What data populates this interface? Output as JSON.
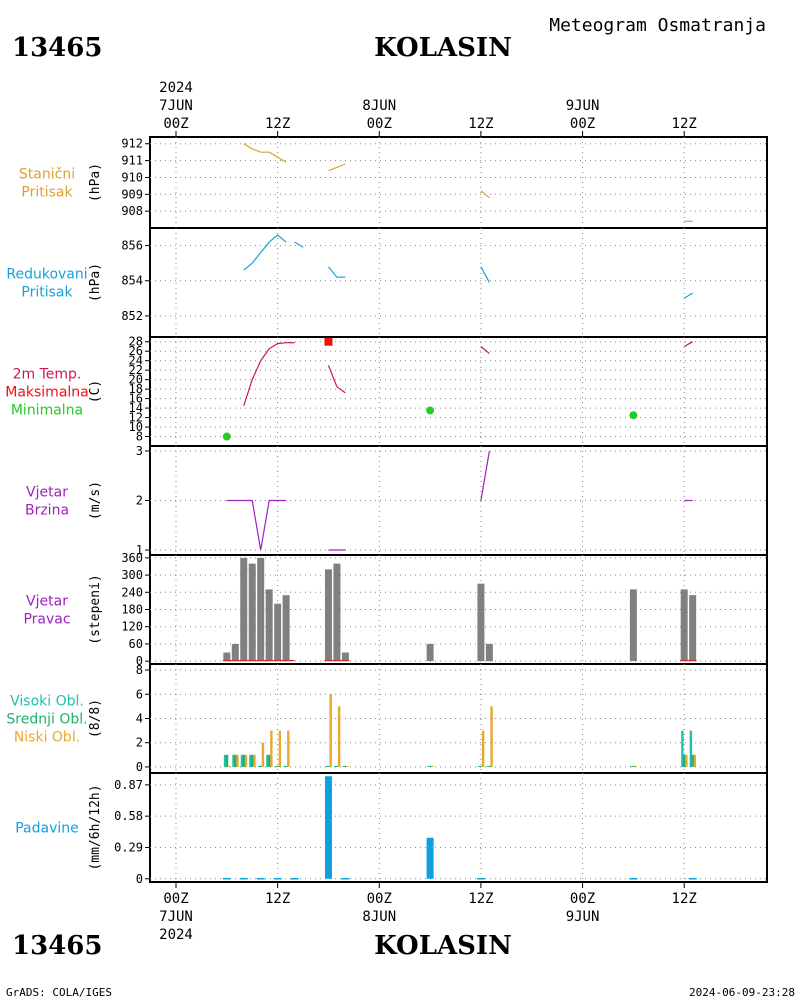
{
  "header": {
    "station_id": "13465",
    "station_name": "KOLASIN",
    "product": "Meteogram Osmatranja"
  },
  "time_axis": {
    "top_year": "2024",
    "date_labels": [
      "7JUN",
      "8JUN",
      "9JUN"
    ],
    "hour_labels": [
      "00Z",
      "12Z",
      "00Z",
      "12Z",
      "00Z",
      "12Z"
    ],
    "bottom_year": "2024"
  },
  "footer": {
    "credit": "GrADS: COLA/IGES",
    "timestamp": "2024-06-09-23:28"
  },
  "colors": {
    "pressure": "#e0a030",
    "reduced_pressure": "#1aa0d8",
    "temp": "#c8185a",
    "max_temp": "#ee1111",
    "min_temp": "#22cc22",
    "wind": "#a020c0",
    "dir_bar": "#808080",
    "dir_line": "#c83030",
    "high_cloud": "#20c0b0",
    "mid_cloud": "#20b070",
    "low_cloud": "#e8a830",
    "precip": "#10a0e0"
  },
  "chart_data": [
    {
      "type": "line",
      "panel": "station_pressure",
      "label_lines": [
        "Stanični",
        "Pritisak"
      ],
      "ylabel": "(hPa)",
      "ylim": [
        907,
        912.4
      ],
      "yticks": [
        912,
        911,
        910,
        909,
        908
      ],
      "series": [
        {
          "x": [
            8,
            9,
            10,
            11,
            12,
            13
          ],
          "values": [
            912.0,
            911.7,
            911.5,
            911.5,
            911.2,
            910.9
          ]
        },
        {
          "x": [
            18,
            20
          ],
          "values": [
            910.4,
            910.8
          ]
        },
        {
          "x": [
            36,
            37
          ],
          "values": [
            909.2,
            908.8
          ]
        },
        {
          "x": [
            60,
            61
          ],
          "values": [
            907.4,
            907.4
          ]
        }
      ]
    },
    {
      "type": "line",
      "panel": "reduced_pressure",
      "label_lines": [
        "Redukovani",
        "Pritisak"
      ],
      "ylabel": "(hPa)",
      "ylim": [
        850.8,
        857
      ],
      "yticks": [
        856,
        854,
        852
      ],
      "series": [
        {
          "x": [
            8,
            9,
            10,
            11,
            12,
            13
          ],
          "values": [
            854.6,
            855.0,
            855.6,
            856.2,
            856.6,
            856.2
          ]
        },
        {
          "x": [
            14,
            15
          ],
          "values": [
            856.2,
            855.9
          ]
        },
        {
          "x": [
            18,
            19,
            20
          ],
          "values": [
            854.8,
            854.2,
            854.2
          ]
        },
        {
          "x": [
            36,
            37
          ],
          "values": [
            854.8,
            853.9
          ]
        },
        {
          "x": [
            60,
            61
          ],
          "values": [
            853.0,
            853.3
          ]
        }
      ]
    },
    {
      "type": "line",
      "panel": "temperature",
      "label_lines": [
        "2m Temp.",
        "Maksimalna",
        "Minimalna"
      ],
      "ylabel": "(C)",
      "ylim": [
        6,
        29
      ],
      "yticks": [
        28,
        26,
        24,
        22,
        20,
        18,
        16,
        14,
        12,
        10,
        8
      ],
      "series": [
        {
          "name": "2m Temp.",
          "x": [
            8,
            9,
            10,
            11,
            12,
            13
          ],
          "values": [
            14.5,
            20.0,
            24.0,
            26.5,
            27.6,
            27.8
          ]
        },
        {
          "x": [
            13,
            14
          ],
          "values": [
            27.8,
            27.8
          ]
        },
        {
          "x": [
            18,
            19,
            20
          ],
          "values": [
            23.0,
            18.5,
            17.2
          ]
        },
        {
          "x": [
            36,
            37
          ],
          "values": [
            27.0,
            25.5
          ]
        },
        {
          "x": [
            60,
            61
          ],
          "values": [
            27.0,
            28.0
          ]
        }
      ],
      "max_points": [
        {
          "x": 18,
          "value": 28.0
        }
      ],
      "min_points": [
        {
          "x": 6,
          "value": 8.0
        },
        {
          "x": 30,
          "value": 13.5
        },
        {
          "x": 54,
          "value": 12.5
        }
      ]
    },
    {
      "type": "line",
      "panel": "wind_speed",
      "label_lines": [
        "Vjetar",
        "Brzina"
      ],
      "ylabel": "(m/s)",
      "ylim": [
        0.9,
        3.1
      ],
      "yticks": [
        3,
        2,
        1
      ],
      "series": [
        {
          "x": [
            6,
            7,
            8,
            9,
            10,
            11,
            12,
            13
          ],
          "values": [
            2,
            2,
            2,
            2,
            1,
            2,
            2,
            2
          ]
        },
        {
          "x": [
            18,
            20
          ],
          "values": [
            1,
            1
          ]
        },
        {
          "x": [
            36,
            37
          ],
          "values": [
            2,
            3
          ]
        },
        {
          "x": [
            60,
            61
          ],
          "values": [
            2,
            2
          ]
        }
      ]
    },
    {
      "type": "bar",
      "panel": "wind_direction",
      "label_lines": [
        "Vjetar",
        "Pravac"
      ],
      "ylabel": "(stepeni)",
      "ylim": [
        -10,
        370
      ],
      "yticks": [
        360,
        300,
        240,
        180,
        120,
        60,
        0
      ],
      "x": [
        6,
        7,
        8,
        9,
        10,
        11,
        12,
        13,
        18,
        19,
        20,
        30,
        36,
        37,
        54,
        60,
        61
      ],
      "values": [
        30,
        60,
        360,
        340,
        360,
        250,
        200,
        230,
        320,
        340,
        30,
        60,
        270,
        60,
        250,
        250,
        230
      ]
    },
    {
      "type": "bar",
      "panel": "clouds",
      "label_lines": [
        "Visoki Obl.",
        "Srednji Obl.",
        "Niski Obl."
      ],
      "ylabel": "(8/8)",
      "ylim": [
        -0.5,
        8.5
      ],
      "yticks": [
        8,
        6,
        4,
        2,
        0
      ],
      "x": [
        6,
        7,
        8,
        9,
        10,
        11,
        12,
        13,
        18,
        19,
        20,
        30,
        36,
        37,
        54,
        60,
        61
      ],
      "series": [
        {
          "name": "Visoki Obl.",
          "values": [
            1,
            1,
            1,
            1,
            0,
            1,
            0,
            0,
            0,
            0,
            0,
            0,
            0,
            0,
            0,
            3,
            3
          ]
        },
        {
          "name": "Srednji Obl.",
          "values": [
            1,
            1,
            1,
            1,
            0,
            1,
            0,
            0,
            0,
            0,
            0,
            0,
            0,
            0,
            0,
            1,
            1
          ]
        },
        {
          "name": "Niski Obl.",
          "values": [
            0,
            1,
            1,
            1,
            2,
            3,
            3,
            3,
            6,
            5,
            0,
            0,
            3,
            5,
            0,
            1,
            1
          ]
        }
      ]
    },
    {
      "type": "bar",
      "panel": "precipitation",
      "label_lines": [
        "Padavine"
      ],
      "ylabel": "(mm/6h/12h)",
      "ylim": [
        -0.03,
        0.98
      ],
      "yticks": [
        0.87,
        0.58,
        0.29,
        0
      ],
      "ytick_labels": [
        "0.87",
        "0.58",
        "0.29",
        "0"
      ],
      "x": [
        18,
        30
      ],
      "values": [
        0.95,
        0.38
      ]
    }
  ]
}
